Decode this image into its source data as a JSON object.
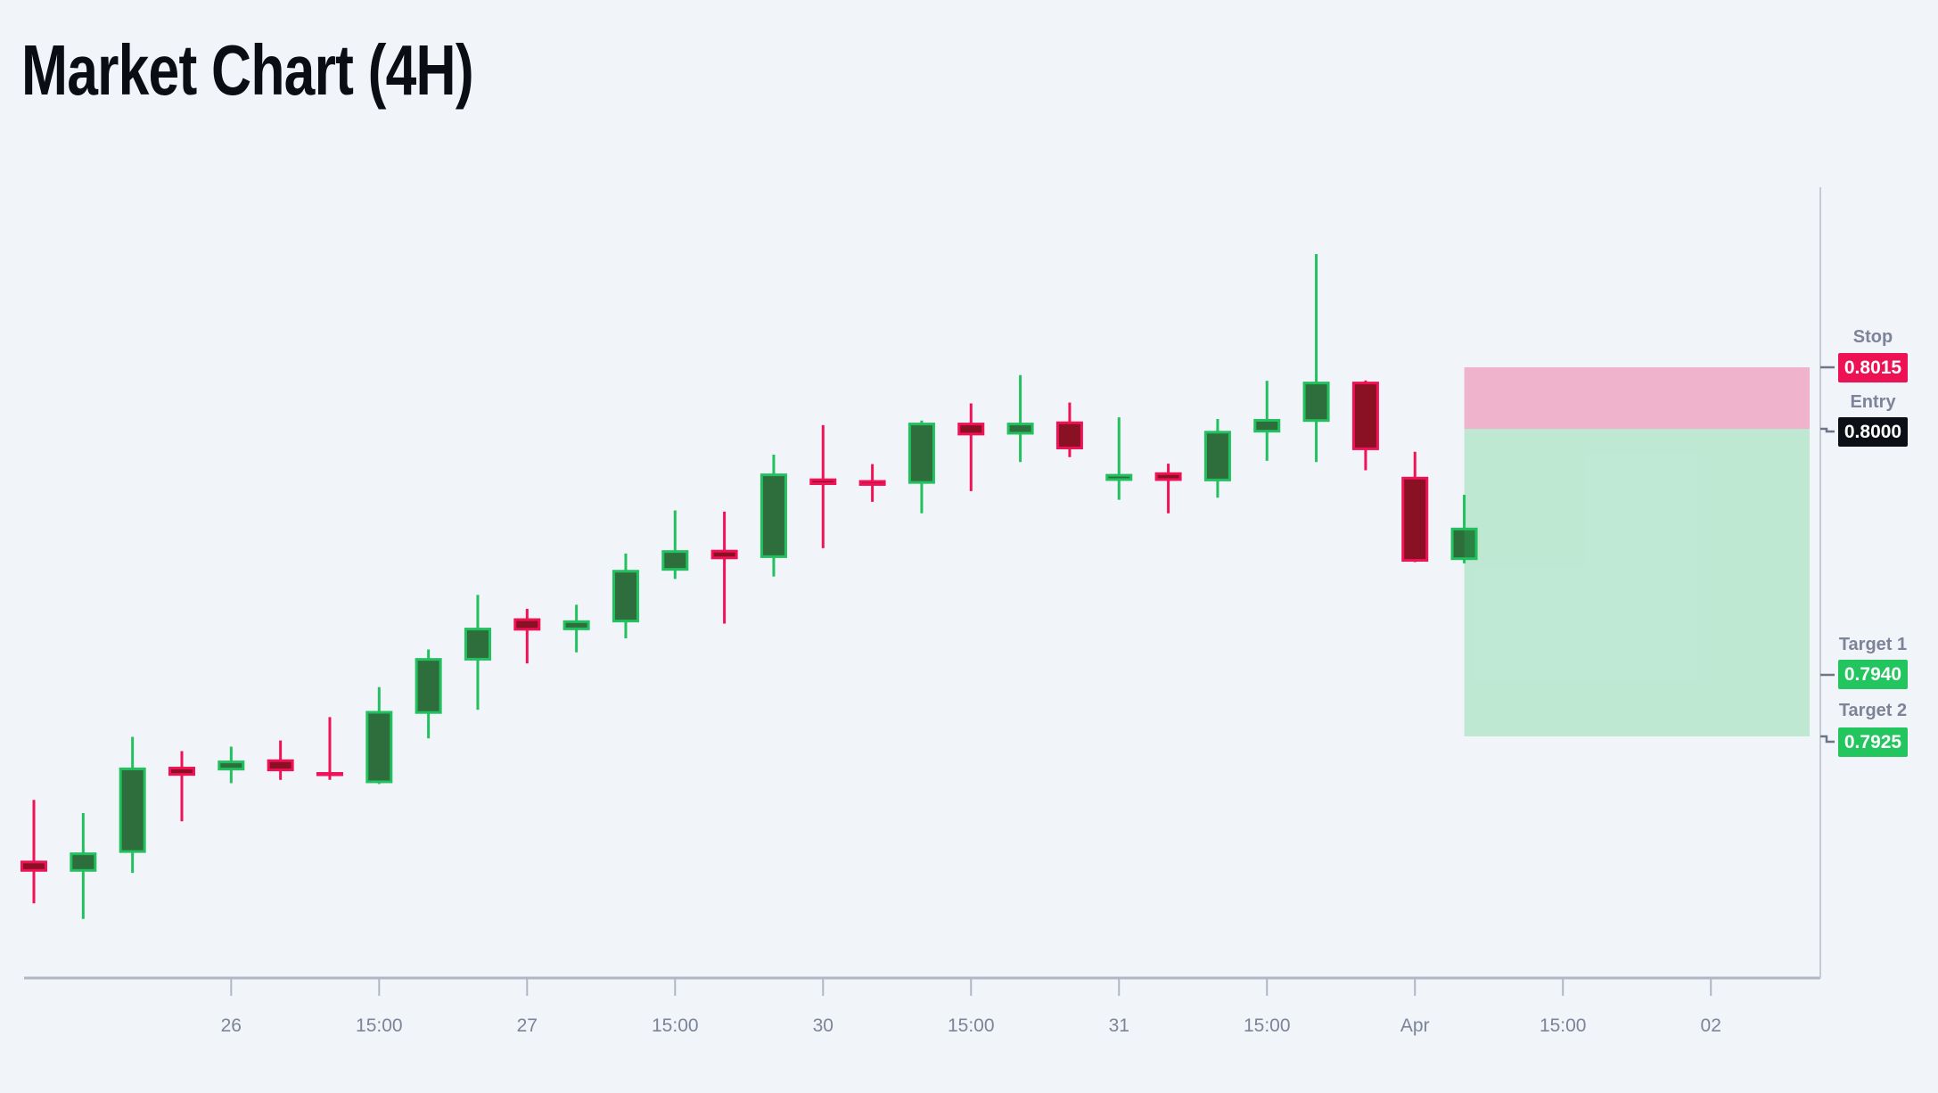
{
  "title": "Market Chart (4H)",
  "colors": {
    "background": "#f1f4f9",
    "bullish_border": "#22c05e",
    "bullish_fill": "#2d6e3c",
    "bearish_border": "#f01256",
    "bearish_fill": "#8a1023",
    "axis_line": "#b0b6c3",
    "vertical_axis_line": "#c6cad5",
    "label_text": "#7d8398",
    "connector": "#6f7589",
    "stop_badge": "#ec1254",
    "entry_badge": "#0d0f16",
    "target_badge": "#22c55e",
    "zone_stop_fill": "rgba(236,20,90,0.29)",
    "zone_profit_fill": "rgba(34,197,94,0.24)"
  },
  "chart_data": {
    "type": "candlestick",
    "title": "Market Chart (4H)",
    "timeframe": "4H",
    "y_axis": {
      "labels_shown": false,
      "visible_range": [
        0.7866,
        0.8059
      ]
    },
    "x_axis": {
      "labels": [
        {
          "index": 4,
          "label": "26"
        },
        {
          "index": 7,
          "label": "15:00"
        },
        {
          "index": 10,
          "label": "27"
        },
        {
          "index": 13,
          "label": "15:00"
        },
        {
          "index": 16,
          "label": "30"
        },
        {
          "index": 19,
          "label": "15:00"
        },
        {
          "index": 22,
          "label": "31"
        },
        {
          "index": 25,
          "label": "15:00"
        },
        {
          "index": 28,
          "label": "Apr"
        },
        {
          "index": 31,
          "label": "15:00"
        },
        {
          "index": 34,
          "label": "02"
        }
      ]
    },
    "candles": [
      {
        "o": 0.78947,
        "h": 0.79095,
        "l": 0.78843,
        "c": 0.7892
      },
      {
        "o": 0.7892,
        "h": 0.79063,
        "l": 0.78805,
        "c": 0.78967
      },
      {
        "o": 0.78966,
        "h": 0.79249,
        "l": 0.78917,
        "c": 0.79174
      },
      {
        "o": 0.79176,
        "h": 0.79214,
        "l": 0.79043,
        "c": 0.79154
      },
      {
        "o": 0.79167,
        "h": 0.79225,
        "l": 0.79136,
        "c": 0.79191
      },
      {
        "o": 0.79194,
        "h": 0.7924,
        "l": 0.79144,
        "c": 0.79165
      },
      {
        "o": 0.79163,
        "h": 0.79297,
        "l": 0.79144,
        "c": 0.79154
      },
      {
        "o": 0.79136,
        "h": 0.7937,
        "l": 0.79134,
        "c": 0.79312
      },
      {
        "o": 0.79305,
        "h": 0.79462,
        "l": 0.79245,
        "c": 0.79441
      },
      {
        "o": 0.79435,
        "h": 0.79595,
        "l": 0.79315,
        "c": 0.79515
      },
      {
        "o": 0.79538,
        "h": 0.79561,
        "l": 0.79428,
        "c": 0.79508
      },
      {
        "o": 0.79509,
        "h": 0.79571,
        "l": 0.79455,
        "c": 0.79533
      },
      {
        "o": 0.79528,
        "h": 0.79696,
        "l": 0.79489,
        "c": 0.79656
      },
      {
        "o": 0.79654,
        "h": 0.79801,
        "l": 0.79634,
        "c": 0.79704
      },
      {
        "o": 0.79705,
        "h": 0.79798,
        "l": 0.79525,
        "c": 0.79682
      },
      {
        "o": 0.79685,
        "h": 0.79937,
        "l": 0.7964,
        "c": 0.79891
      },
      {
        "o": 0.79879,
        "h": 0.80009,
        "l": 0.79709,
        "c": 0.79863
      },
      {
        "o": 0.79875,
        "h": 0.79914,
        "l": 0.79822,
        "c": 0.79861
      },
      {
        "o": 0.79866,
        "h": 0.8002,
        "l": 0.79794,
        "c": 0.80015
      },
      {
        "o": 0.80015,
        "h": 0.80062,
        "l": 0.79848,
        "c": 0.79984
      },
      {
        "o": 0.79986,
        "h": 0.80131,
        "l": 0.79919,
        "c": 0.80015
      },
      {
        "o": 0.80018,
        "h": 0.80064,
        "l": 0.79931,
        "c": 0.7995
      },
      {
        "o": 0.79873,
        "h": 0.80028,
        "l": 0.79827,
        "c": 0.7989
      },
      {
        "o": 0.79894,
        "h": 0.79915,
        "l": 0.79794,
        "c": 0.79873
      },
      {
        "o": 0.79872,
        "h": 0.80024,
        "l": 0.79832,
        "c": 0.79995
      },
      {
        "o": 0.79991,
        "h": 0.80117,
        "l": 0.79922,
        "c": 0.80024
      },
      {
        "o": 0.80017,
        "h": 0.80426,
        "l": 0.79919,
        "c": 0.80115
      },
      {
        "o": 0.80115,
        "h": 0.80118,
        "l": 0.79899,
        "c": 0.79948
      },
      {
        "o": 0.79883,
        "h": 0.79944,
        "l": 0.79675,
        "c": 0.79676
      },
      {
        "o": 0.7968,
        "h": 0.79839,
        "l": 0.79672,
        "c": 0.79759
      }
    ],
    "trade_levels": [
      {
        "name": "Stop",
        "value": "0.8015",
        "price": 0.8015
      },
      {
        "name": "Entry",
        "value": "0.8000",
        "price": 0.8
      },
      {
        "name": "Target 1",
        "value": "0.7940",
        "price": 0.794
      },
      {
        "name": "Target 2",
        "value": "0.7925",
        "price": 0.7925
      }
    ],
    "zones": [
      {
        "kind": "stop",
        "from": 0.8,
        "to": 0.8015
      },
      {
        "kind": "profit",
        "from": 0.7925,
        "to": 0.8
      }
    ],
    "zone_start_candle_index": 29
  }
}
